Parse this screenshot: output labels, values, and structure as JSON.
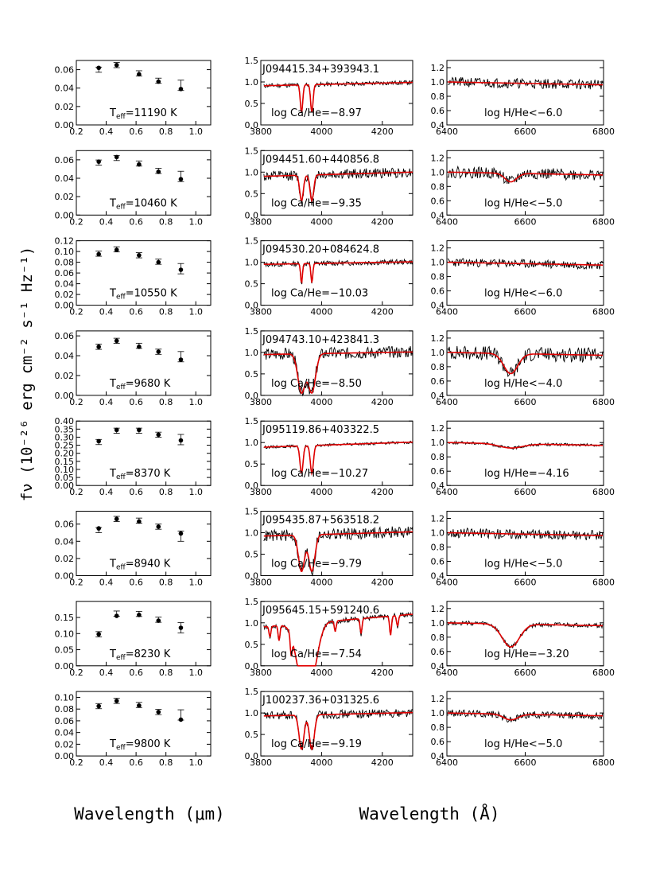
{
  "figure": {
    "ylabel": "fν (10⁻²⁶ erg cm⁻² s⁻¹ Hz⁻¹)",
    "xlabel_left": "Wavelength (μm)",
    "xlabel_right": "Wavelength (Å)"
  },
  "style": {
    "data_color": "#000000",
    "model_color": "#e00000"
  },
  "axes": {
    "photometry": {
      "xlim": [
        0.2,
        1.1
      ],
      "xticks": [
        "0.2",
        "0.4",
        "0.6",
        "0.8",
        "1.0"
      ]
    },
    "caII": {
      "xlim": [
        3800,
        4300
      ],
      "xticks": [
        "3800",
        "4000",
        "4200"
      ],
      "ylim": [
        0,
        1.5
      ],
      "yticks": [
        "0.0",
        "0.5",
        "1.0",
        "1.5"
      ]
    },
    "halpha": {
      "xlim": [
        6400,
        6800
      ],
      "xticks": [
        "6400",
        "6600",
        "6800"
      ],
      "ylim": [
        0.4,
        1.3
      ],
      "yticks": [
        "0.4",
        "0.6",
        "0.8",
        "1.0",
        "1.2"
      ]
    }
  },
  "chart_data": [
    {
      "type": "scatter",
      "panel": "photometry-1",
      "label": "T_eff=11190 K",
      "teff": "11190",
      "ylim": [
        0,
        0.07
      ],
      "yticks": [
        "0.00",
        "0.02",
        "0.04",
        "0.06"
      ],
      "x": [
        0.35,
        0.47,
        0.62,
        0.75,
        0.9
      ],
      "y": [
        0.062,
        0.065,
        0.055,
        0.047,
        0.039
      ],
      "model": [
        0.06,
        0.065,
        0.056,
        0.048,
        0.043
      ]
    },
    {
      "type": "scatter",
      "panel": "photometry-2",
      "label": "T_eff=10460 K",
      "teff": "10460",
      "ylim": [
        0,
        0.07
      ],
      "yticks": [
        "0.00",
        "0.02",
        "0.04",
        "0.06"
      ],
      "x": [
        0.35,
        0.47,
        0.62,
        0.75,
        0.9
      ],
      "y": [
        0.058,
        0.063,
        0.055,
        0.047,
        0.039
      ],
      "model": [
        0.057,
        0.062,
        0.056,
        0.048,
        0.042
      ]
    },
    {
      "type": "scatter",
      "panel": "photometry-3",
      "label": "T_eff=10550 K",
      "teff": "10550",
      "ylim": [
        0,
        0.12
      ],
      "yticks": [
        "0.00",
        "0.02",
        "0.04",
        "0.06",
        "0.08",
        "0.10",
        "0.12"
      ],
      "x": [
        0.35,
        0.47,
        0.62,
        0.75,
        0.9
      ],
      "y": [
        0.095,
        0.103,
        0.093,
        0.08,
        0.066
      ],
      "model": [
        0.096,
        0.104,
        0.093,
        0.081,
        0.068
      ]
    },
    {
      "type": "scatter",
      "panel": "photometry-4",
      "label": "T_eff=9680 K",
      "teff": "9680",
      "ylim": [
        0,
        0.065
      ],
      "yticks": [
        "0.00",
        "0.02",
        "0.04",
        "0.06"
      ],
      "x": [
        0.35,
        0.47,
        0.62,
        0.75,
        0.9
      ],
      "y": [
        0.049,
        0.055,
        0.049,
        0.044,
        0.036
      ],
      "model": [
        0.049,
        0.055,
        0.05,
        0.044,
        0.039
      ]
    },
    {
      "type": "scatter",
      "panel": "photometry-5",
      "label": "T_eff=8370 K",
      "teff": "8370",
      "ylim": [
        0,
        0.4
      ],
      "yticks": [
        "0.00",
        "0.05",
        "0.10",
        "0.15",
        "0.20",
        "0.25",
        "0.30",
        "0.35",
        "0.40"
      ],
      "x": [
        0.35,
        0.47,
        0.62,
        0.75,
        0.9
      ],
      "y": [
        0.275,
        0.345,
        0.345,
        0.315,
        0.28
      ],
      "model": [
        0.27,
        0.34,
        0.34,
        0.315,
        0.285
      ]
    },
    {
      "type": "scatter",
      "panel": "photometry-6",
      "label": "T_eff=8940 K",
      "teff": "8940",
      "ylim": [
        0,
        0.075
      ],
      "yticks": [
        "0.00",
        "0.02",
        "0.04",
        "0.06"
      ],
      "x": [
        0.35,
        0.47,
        0.62,
        0.75,
        0.9
      ],
      "y": [
        0.055,
        0.066,
        0.063,
        0.057,
        0.049
      ],
      "model": [
        0.053,
        0.066,
        0.064,
        0.057,
        0.046
      ]
    },
    {
      "type": "scatter",
      "panel": "photometry-7",
      "label": "T_eff=8230 K",
      "teff": "8230",
      "ylim": [
        0,
        0.2
      ],
      "yticks": [
        "0.00",
        "0.05",
        "0.10",
        "0.15"
      ],
      "x": [
        0.35,
        0.47,
        0.62,
        0.75,
        0.9
      ],
      "y": [
        0.098,
        0.155,
        0.158,
        0.14,
        0.118
      ],
      "model": [
        0.098,
        0.162,
        0.161,
        0.143,
        0.118
      ]
    },
    {
      "type": "scatter",
      "panel": "photometry-8",
      "label": "T_eff=9800 K",
      "teff": "9800",
      "ylim": [
        0,
        0.11
      ],
      "yticks": [
        "0.00",
        "0.02",
        "0.04",
        "0.06",
        "0.08",
        "0.10"
      ],
      "x": [
        0.35,
        0.47,
        0.62,
        0.75,
        0.9
      ],
      "y": [
        0.085,
        0.094,
        0.086,
        0.075,
        0.062
      ],
      "model": [
        0.085,
        0.094,
        0.087,
        0.075,
        0.07
      ]
    },
    {
      "type": "line",
      "panel": "caII-1",
      "object": "J094415.34+393943.1",
      "label": "log Ca/He=−8.97",
      "seed": 11,
      "noise": 0.05,
      "depth": 0.65,
      "width": 4,
      "cont": 0.95,
      "slope": 0.04,
      "red": true
    },
    {
      "type": "line",
      "panel": "caII-2",
      "object": "J094451.60+440856.8",
      "label": "log Ca/He=−9.35",
      "seed": 12,
      "noise": 0.12,
      "depth": 0.6,
      "width": 6,
      "cont": 0.95,
      "slope": 0.05,
      "red": true
    },
    {
      "type": "line",
      "panel": "caII-3",
      "object": "J094530.20+084624.8",
      "label": "log Ca/He=−10.03",
      "seed": 13,
      "noise": 0.06,
      "depth": 0.45,
      "width": 3,
      "cont": 0.98,
      "slope": 0.03,
      "red": true
    },
    {
      "type": "line",
      "panel": "caII-4",
      "object": "J094743.10+423841.3",
      "label": "log Ca/He=−8.50",
      "seed": 14,
      "noise": 0.14,
      "depth": 0.9,
      "width": 12,
      "cont": 0.98,
      "slope": 0.03,
      "red": true
    },
    {
      "type": "line",
      "panel": "caII-5",
      "object": "J095119.86+403322.5",
      "label": "log Ca/He=−10.27",
      "seed": 15,
      "noise": 0.03,
      "depth": 0.65,
      "width": 5,
      "cont": 0.95,
      "slope": 0.06,
      "red": true
    },
    {
      "type": "line",
      "panel": "caII-6",
      "object": "J095435.87+563518.2",
      "label": "log Ca/He=−9.79",
      "seed": 16,
      "noise": 0.14,
      "depth": 0.85,
      "width": 10,
      "cont": 0.97,
      "slope": 0.05,
      "red": true
    },
    {
      "type": "line",
      "panel": "caII-7",
      "object": "J095645.15+591240.6",
      "label": "log Ca/He=−7.54",
      "seed": 17,
      "noise": 0.06,
      "depth": 0.9,
      "width": 20,
      "cont": 1.05,
      "slope": 0.15,
      "red": true,
      "metal": true
    },
    {
      "type": "line",
      "panel": "caII-8",
      "object": "J100237.36+031325.6",
      "label": "log Ca/He=−9.19",
      "seed": 18,
      "noise": 0.1,
      "depth": 0.8,
      "width": 8,
      "cont": 0.97,
      "slope": 0.04,
      "red": true
    },
    {
      "type": "line",
      "panel": "halpha-1",
      "label": "log H/He<−6.0",
      "seed": 21,
      "noise": 0.07,
      "depth": 0.0,
      "width": 15
    },
    {
      "type": "line",
      "panel": "halpha-2",
      "label": "log H/He<−5.0",
      "seed": 22,
      "noise": 0.08,
      "depth": 0.12,
      "width": 15
    },
    {
      "type": "line",
      "panel": "halpha-3",
      "label": "log H/He<−6.0",
      "seed": 23,
      "noise": 0.06,
      "depth": 0.0,
      "width": 15
    },
    {
      "type": "line",
      "panel": "halpha-4",
      "label": "log H/He<−4.0",
      "seed": 24,
      "noise": 0.1,
      "depth": 0.28,
      "width": 18
    },
    {
      "type": "line",
      "panel": "halpha-5",
      "label": "log H/He=−4.16",
      "seed": 25,
      "noise": 0.02,
      "depth": 0.06,
      "width": 30
    },
    {
      "type": "line",
      "panel": "halpha-6",
      "label": "log H/He<−5.0",
      "seed": 26,
      "noise": 0.07,
      "depth": 0.0,
      "width": 15
    },
    {
      "type": "line",
      "panel": "halpha-7",
      "label": "log H/He=−3.20",
      "seed": 27,
      "noise": 0.03,
      "depth": 0.32,
      "width": 22
    },
    {
      "type": "line",
      "panel": "halpha-8",
      "label": "log H/He<−5.0",
      "seed": 28,
      "noise": 0.05,
      "depth": 0.08,
      "width": 18
    }
  ]
}
